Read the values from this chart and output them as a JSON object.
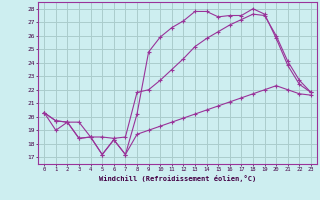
{
  "xlabel": "Windchill (Refroidissement éolien,°C)",
  "bg_color": "#cdeef0",
  "grid_color": "#aacccc",
  "line_color": "#993399",
  "x_ticks": [
    0,
    1,
    2,
    3,
    4,
    5,
    6,
    7,
    8,
    9,
    10,
    11,
    12,
    13,
    14,
    15,
    16,
    17,
    18,
    19,
    20,
    21,
    22,
    23
  ],
  "y_ticks": [
    17,
    18,
    19,
    20,
    21,
    22,
    23,
    24,
    25,
    26,
    27,
    28
  ],
  "xlim": [
    -0.5,
    23.5
  ],
  "ylim": [
    16.5,
    28.5
  ],
  "line1_x": [
    0,
    1,
    2,
    3,
    4,
    5,
    6,
    7,
    8,
    9,
    10,
    11,
    12,
    13,
    14,
    15,
    16,
    17,
    18,
    19,
    20,
    21,
    22,
    23
  ],
  "line1_y": [
    20.3,
    19.7,
    19.6,
    18.4,
    18.5,
    17.2,
    18.3,
    17.2,
    20.2,
    24.8,
    25.9,
    26.6,
    27.1,
    27.8,
    27.8,
    27.4,
    27.5,
    27.5,
    28.0,
    27.6,
    25.8,
    23.8,
    22.4,
    21.8
  ],
  "line2_x": [
    0,
    1,
    2,
    3,
    4,
    5,
    6,
    7,
    8,
    9,
    10,
    11,
    12,
    13,
    14,
    15,
    16,
    17,
    18,
    19,
    20,
    21,
    22,
    23
  ],
  "line2_y": [
    20.3,
    19.7,
    19.6,
    19.6,
    18.5,
    18.5,
    18.4,
    18.5,
    21.8,
    22.0,
    22.7,
    23.5,
    24.3,
    25.2,
    25.8,
    26.3,
    26.8,
    27.2,
    27.6,
    27.5,
    26.0,
    24.1,
    22.7,
    21.8
  ],
  "line3_x": [
    0,
    1,
    2,
    3,
    4,
    5,
    6,
    7,
    8,
    9,
    10,
    11,
    12,
    13,
    14,
    15,
    16,
    17,
    18,
    19,
    20,
    21,
    22,
    23
  ],
  "line3_y": [
    20.3,
    19.0,
    19.6,
    18.4,
    18.5,
    17.2,
    18.3,
    17.2,
    18.7,
    19.0,
    19.3,
    19.6,
    19.9,
    20.2,
    20.5,
    20.8,
    21.1,
    21.4,
    21.7,
    22.0,
    22.3,
    22.0,
    21.7,
    21.6
  ]
}
